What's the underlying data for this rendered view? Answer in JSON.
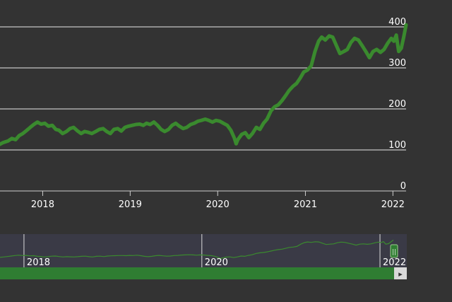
{
  "chart_data": {
    "type": "line",
    "title": "",
    "xlabel": "",
    "ylabel": "",
    "ylim": [
      0,
      420
    ],
    "y_ticks": [
      "0",
      "100",
      "200",
      "300",
      "400"
    ],
    "x_ticks": [
      "2018",
      "2019",
      "2020",
      "2021",
      "2022"
    ],
    "grid": true,
    "series": [
      {
        "color": "#3a8a2e",
        "points": [
          [
            "2017-07-01",
            112
          ],
          [
            "2017-07-20",
            118
          ],
          [
            "2017-08-10",
            122
          ],
          [
            "2017-08-25",
            128
          ],
          [
            "2017-09-10",
            125
          ],
          [
            "2017-09-25",
            135
          ],
          [
            "2017-10-10",
            140
          ],
          [
            "2017-10-25",
            147
          ],
          [
            "2017-11-10",
            155
          ],
          [
            "2017-11-25",
            162
          ],
          [
            "2017-12-10",
            168
          ],
          [
            "2017-12-25",
            163
          ],
          [
            "2018-01-10",
            165
          ],
          [
            "2018-01-25",
            158
          ],
          [
            "2018-02-10",
            160
          ],
          [
            "2018-02-25",
            150
          ],
          [
            "2018-03-10",
            148
          ],
          [
            "2018-03-25",
            140
          ],
          [
            "2018-04-10",
            145
          ],
          [
            "2018-04-25",
            152
          ],
          [
            "2018-05-10",
            155
          ],
          [
            "2018-05-25",
            147
          ],
          [
            "2018-06-10",
            140
          ],
          [
            "2018-06-25",
            145
          ],
          [
            "2018-07-10",
            143
          ],
          [
            "2018-07-25",
            140
          ],
          [
            "2018-08-10",
            145
          ],
          [
            "2018-08-25",
            150
          ],
          [
            "2018-09-10",
            152
          ],
          [
            "2018-09-25",
            145
          ],
          [
            "2018-10-10",
            140
          ],
          [
            "2018-10-25",
            150
          ],
          [
            "2018-11-10",
            152
          ],
          [
            "2018-11-25",
            146
          ],
          [
            "2018-12-10",
            155
          ],
          [
            "2018-12-25",
            158
          ],
          [
            "2019-01-10",
            160
          ],
          [
            "2019-01-25",
            162
          ],
          [
            "2019-02-10",
            163
          ],
          [
            "2019-02-25",
            160
          ],
          [
            "2019-03-10",
            165
          ],
          [
            "2019-03-25",
            162
          ],
          [
            "2019-04-10",
            168
          ],
          [
            "2019-04-25",
            160
          ],
          [
            "2019-05-10",
            150
          ],
          [
            "2019-05-25",
            145
          ],
          [
            "2019-06-10",
            150
          ],
          [
            "2019-06-25",
            160
          ],
          [
            "2019-07-10",
            165
          ],
          [
            "2019-07-25",
            158
          ],
          [
            "2019-08-10",
            152
          ],
          [
            "2019-08-25",
            155
          ],
          [
            "2019-09-10",
            162
          ],
          [
            "2019-09-25",
            165
          ],
          [
            "2019-10-10",
            170
          ],
          [
            "2019-10-25",
            172
          ],
          [
            "2019-11-10",
            175
          ],
          [
            "2019-11-25",
            172
          ],
          [
            "2019-12-10",
            168
          ],
          [
            "2019-12-25",
            172
          ],
          [
            "2020-01-10",
            170
          ],
          [
            "2020-01-25",
            165
          ],
          [
            "2020-02-10",
            160
          ],
          [
            "2020-02-25",
            148
          ],
          [
            "2020-03-10",
            130
          ],
          [
            "2020-03-18",
            115
          ],
          [
            "2020-03-25",
            125
          ],
          [
            "2020-04-10",
            138
          ],
          [
            "2020-04-25",
            142
          ],
          [
            "2020-05-10",
            130
          ],
          [
            "2020-05-25",
            140
          ],
          [
            "2020-06-10",
            155
          ],
          [
            "2020-06-25",
            150
          ],
          [
            "2020-07-10",
            165
          ],
          [
            "2020-07-25",
            175
          ],
          [
            "2020-08-10",
            195
          ],
          [
            "2020-08-25",
            205
          ],
          [
            "2020-09-10",
            210
          ],
          [
            "2020-09-25",
            220
          ],
          [
            "2020-10-10",
            232
          ],
          [
            "2020-10-25",
            245
          ],
          [
            "2020-11-10",
            255
          ],
          [
            "2020-11-25",
            262
          ],
          [
            "2020-12-10",
            275
          ],
          [
            "2020-12-25",
            290
          ],
          [
            "2021-01-10",
            295
          ],
          [
            "2021-01-25",
            305
          ],
          [
            "2021-02-10",
            340
          ],
          [
            "2021-02-25",
            365
          ],
          [
            "2021-03-10",
            375
          ],
          [
            "2021-03-25",
            368
          ],
          [
            "2021-04-10",
            378
          ],
          [
            "2021-04-25",
            375
          ],
          [
            "2021-05-10",
            355
          ],
          [
            "2021-05-25",
            335
          ],
          [
            "2021-06-10",
            340
          ],
          [
            "2021-06-25",
            345
          ],
          [
            "2021-07-10",
            362
          ],
          [
            "2021-07-25",
            372
          ],
          [
            "2021-08-10",
            368
          ],
          [
            "2021-08-25",
            355
          ],
          [
            "2021-09-10",
            340
          ],
          [
            "2021-09-25",
            325
          ],
          [
            "2021-10-10",
            340
          ],
          [
            "2021-10-25",
            345
          ],
          [
            "2021-11-10",
            338
          ],
          [
            "2021-11-25",
            345
          ],
          [
            "2021-12-10",
            360
          ],
          [
            "2021-12-25",
            372
          ],
          [
            "2022-01-05",
            365
          ],
          [
            "2022-01-15",
            380
          ],
          [
            "2022-01-25",
            340
          ],
          [
            "2022-02-05",
            348
          ],
          [
            "2022-02-15",
            375
          ],
          [
            "2022-02-25",
            405
          ]
        ]
      }
    ]
  },
  "navigator": {
    "x_ticks": [
      "2018",
      "2020",
      "2022"
    ],
    "handle_glyph": "||",
    "scroll_arrow": "▸",
    "colors": {
      "background": "#3a3a46",
      "scrollbar": "#2f7d32",
      "series": "#3a8a2e",
      "handle": "#2f7d32"
    }
  }
}
